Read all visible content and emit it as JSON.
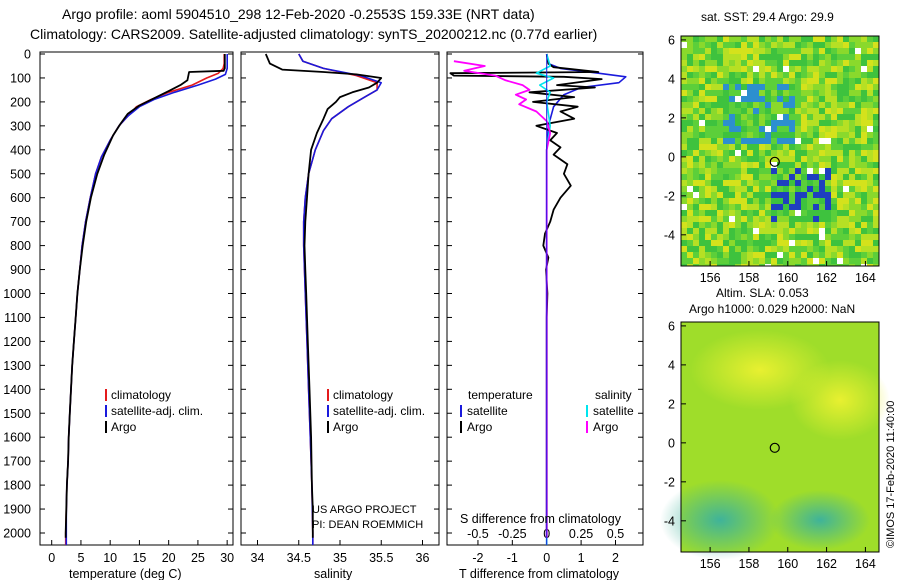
{
  "header": {
    "line1": "Argo profile: aoml 5904510_298 12-Feb-2020 -0.2553S 159.33E (NRT data)",
    "line2": "Climatology: CARS2009. Satellite-adjusted climatology: synTS_20200212.nc (0.77d earlier)"
  },
  "depth_ticks": [
    "0",
    "100",
    "200",
    "300",
    "400",
    "500",
    "600",
    "700",
    "800",
    "900",
    "1000",
    "1100",
    "1200",
    "1300",
    "1400",
    "1500",
    "1600",
    "1700",
    "1800",
    "1900",
    "2000"
  ],
  "colors": {
    "climatology": "#e41a1c",
    "satellite": "#1a1adc",
    "argo": "#000000",
    "sal_sat": "#00e5ee",
    "sal_argo": "#ff00ff"
  },
  "chart_data": [
    {
      "type": "line",
      "id": "temperature",
      "xlabel": "temperature (deg C)",
      "xlim": [
        -2,
        31
      ],
      "xticks": [
        0,
        5,
        10,
        15,
        20,
        25,
        30
      ],
      "ylim": [
        2070,
        0
      ],
      "legend": [
        "climatology",
        "satellite-adj. clim.",
        "Argo"
      ],
      "series": [
        {
          "name": "climatology",
          "color": "#e41a1c",
          "points": [
            [
              29.5,
              0
            ],
            [
              29.5,
              40
            ],
            [
              29.3,
              60
            ],
            [
              28.5,
              80
            ],
            [
              26.5,
              100
            ],
            [
              24,
              130
            ],
            [
              20,
              160
            ],
            [
              17,
              190
            ],
            [
              14.5,
              220
            ],
            [
              13,
              260
            ],
            [
              11.5,
              300
            ],
            [
              10,
              360
            ],
            [
              8.5,
              430
            ],
            [
              7.5,
              500
            ],
            [
              6.6,
              600
            ],
            [
              5.8,
              700
            ],
            [
              5.2,
              800
            ],
            [
              4.8,
              900
            ],
            [
              4.4,
              1000
            ],
            [
              4.1,
              1100
            ],
            [
              3.8,
              1200
            ],
            [
              3.5,
              1300
            ],
            [
              3.3,
              1400
            ],
            [
              3.1,
              1500
            ],
            [
              2.9,
              1600
            ],
            [
              2.8,
              1700
            ],
            [
              2.6,
              1800
            ],
            [
              2.5,
              1900
            ],
            [
              2.4,
              2000
            ],
            [
              2.4,
              2050
            ]
          ]
        },
        {
          "name": "satellite-adj. clim.",
          "color": "#1a1adc",
          "points": [
            [
              30,
              0
            ],
            [
              30,
              30
            ],
            [
              30,
              60
            ],
            [
              29.7,
              85
            ],
            [
              28,
              105
            ],
            [
              25,
              130
            ],
            [
              21,
              160
            ],
            [
              17.5,
              190
            ],
            [
              15,
              220
            ],
            [
              13,
              260
            ],
            [
              11.5,
              300
            ],
            [
              10,
              360
            ],
            [
              8.5,
              430
            ],
            [
              7.5,
              500
            ],
            [
              6.6,
              600
            ],
            [
              5.8,
              700
            ],
            [
              5.2,
              800
            ],
            [
              4.8,
              900
            ],
            [
              4.4,
              1000
            ],
            [
              4.1,
              1100
            ],
            [
              3.8,
              1200
            ],
            [
              3.5,
              1300
            ],
            [
              3.3,
              1400
            ],
            [
              3.1,
              1500
            ],
            [
              2.9,
              1600
            ],
            [
              2.8,
              1700
            ],
            [
              2.6,
              1800
            ],
            [
              2.5,
              1900
            ],
            [
              2.5,
              2000
            ],
            [
              2.5,
              2050
            ]
          ]
        },
        {
          "name": "Argo",
          "color": "#000000",
          "points": [
            [
              29.6,
              0
            ],
            [
              29.6,
              60
            ],
            [
              29.4,
              70
            ],
            [
              23.5,
              75
            ],
            [
              23.2,
              110
            ],
            [
              22,
              130
            ],
            [
              20,
              155
            ],
            [
              17.5,
              185
            ],
            [
              15,
              215
            ],
            [
              13,
              250
            ],
            [
              11.8,
              290
            ],
            [
              10.5,
              340
            ],
            [
              9,
              420
            ],
            [
              7.8,
              500
            ],
            [
              6.7,
              600
            ],
            [
              5.9,
              700
            ],
            [
              5.3,
              800
            ],
            [
              4.8,
              900
            ],
            [
              4.4,
              1000
            ],
            [
              4.1,
              1100
            ],
            [
              3.8,
              1200
            ],
            [
              3.5,
              1300
            ],
            [
              3.3,
              1400
            ],
            [
              3.1,
              1500
            ],
            [
              2.9,
              1600
            ],
            [
              2.8,
              1700
            ],
            [
              2.6,
              1800
            ],
            [
              2.5,
              1900
            ],
            [
              2.4,
              2000
            ],
            [
              2.4,
              2020
            ]
          ]
        }
      ]
    },
    {
      "type": "line",
      "id": "salinity",
      "xlabel": "salinity",
      "xlim": [
        33.8,
        36.2
      ],
      "xticks": [
        34,
        34.5,
        35,
        35.5,
        36
      ],
      "ylim": [
        2070,
        0
      ],
      "legend": [
        "climatology",
        "satellite-adj. clim.",
        "Argo"
      ],
      "annotation": [
        "US ARGO PROJECT",
        "PI: DEAN ROEMMICH"
      ],
      "series": [
        {
          "name": "climatology",
          "color": "#e41a1c",
          "points": [
            [
              34.5,
              0
            ],
            [
              34.55,
              30
            ],
            [
              34.8,
              60
            ],
            [
              35.2,
              90
            ],
            [
              35.45,
              120
            ],
            [
              35.45,
              150
            ],
            [
              35.3,
              180
            ],
            [
              35.1,
              220
            ],
            [
              34.9,
              270
            ],
            [
              34.8,
              320
            ],
            [
              34.7,
              400
            ],
            [
              34.62,
              500
            ],
            [
              34.58,
              600
            ],
            [
              34.56,
              700
            ],
            [
              34.56,
              800
            ],
            [
              34.57,
              900
            ],
            [
              34.58,
              1000
            ],
            [
              34.6,
              1200
            ],
            [
              34.62,
              1400
            ],
            [
              34.64,
              1600
            ],
            [
              34.66,
              1800
            ],
            [
              34.67,
              2000
            ],
            [
              34.67,
              2050
            ]
          ]
        },
        {
          "name": "satellite-adj. clim.",
          "color": "#1a1adc",
          "points": [
            [
              34.5,
              0
            ],
            [
              34.55,
              30
            ],
            [
              34.8,
              60
            ],
            [
              35.25,
              90
            ],
            [
              35.5,
              120
            ],
            [
              35.45,
              150
            ],
            [
              35.3,
              180
            ],
            [
              35.1,
              220
            ],
            [
              34.9,
              270
            ],
            [
              34.8,
              320
            ],
            [
              34.7,
              400
            ],
            [
              34.62,
              500
            ],
            [
              34.58,
              600
            ],
            [
              34.56,
              700
            ],
            [
              34.56,
              800
            ],
            [
              34.57,
              900
            ],
            [
              34.58,
              1000
            ],
            [
              34.6,
              1200
            ],
            [
              34.62,
              1400
            ],
            [
              34.64,
              1600
            ],
            [
              34.66,
              1800
            ],
            [
              34.67,
              2000
            ],
            [
              34.67,
              2050
            ]
          ]
        },
        {
          "name": "Argo",
          "color": "#000000",
          "points": [
            [
              34.1,
              0
            ],
            [
              34.15,
              40
            ],
            [
              34.3,
              65
            ],
            [
              34.8,
              75
            ],
            [
              35.2,
              85
            ],
            [
              35.5,
              100
            ],
            [
              35.45,
              120
            ],
            [
              35.35,
              140
            ],
            [
              35.15,
              160
            ],
            [
              35.0,
              180
            ],
            [
              34.95,
              200
            ],
            [
              34.85,
              230
            ],
            [
              34.8,
              270
            ],
            [
              34.72,
              330
            ],
            [
              34.65,
              400
            ],
            [
              34.62,
              500
            ],
            [
              34.6,
              600
            ],
            [
              34.58,
              700
            ],
            [
              34.57,
              800
            ],
            [
              34.58,
              900
            ],
            [
              34.59,
              1000
            ],
            [
              34.61,
              1200
            ],
            [
              34.63,
              1400
            ],
            [
              34.65,
              1600
            ],
            [
              34.66,
              1800
            ],
            [
              34.67,
              1900
            ],
            [
              34.67,
              2020
            ]
          ]
        }
      ]
    },
    {
      "type": "line",
      "id": "differences",
      "xlabel": "T difference from climatology",
      "xlabel_top": "S difference from climatology",
      "xlim": [
        -2.9,
        2.8
      ],
      "xticks": [
        -2,
        -1,
        0,
        1,
        2
      ],
      "xticks_s": [
        "-0.5",
        "-0.25",
        "0",
        "0.25",
        "0.5"
      ],
      "ylim": [
        2070,
        0
      ],
      "legend_left_title": "temperature",
      "legend_right_title": "salinity",
      "legend": [
        "satellite",
        "Argo"
      ],
      "series": [
        {
          "name": "temperature satellite",
          "color": "#1a1adc",
          "points": [
            [
              0,
              0
            ],
            [
              0.05,
              40
            ],
            [
              0.4,
              60
            ],
            [
              1.5,
              80
            ],
            [
              2.3,
              95
            ],
            [
              2.1,
              120
            ],
            [
              1.0,
              140
            ],
            [
              0.5,
              170
            ],
            [
              0.2,
              220
            ],
            [
              0.05,
              300
            ],
            [
              0,
              400
            ],
            [
              0,
              2050
            ]
          ]
        },
        {
          "name": "temperature Argo",
          "color": "#000000",
          "points": [
            [
              0,
              0
            ],
            [
              0.05,
              40
            ],
            [
              0.2,
              55
            ],
            [
              1.5,
              75
            ],
            [
              -2.8,
              80
            ],
            [
              -2.7,
              90
            ],
            [
              0.5,
              95
            ],
            [
              1.6,
              105
            ],
            [
              0.3,
              130
            ],
            [
              1.4,
              140
            ],
            [
              -0.5,
              160
            ],
            [
              0.8,
              180
            ],
            [
              -0.4,
              200
            ],
            [
              0.9,
              220
            ],
            [
              0.4,
              240
            ],
            [
              0.8,
              270
            ],
            [
              -0.3,
              300
            ],
            [
              0.3,
              330
            ],
            [
              0.1,
              360
            ],
            [
              0.4,
              390
            ],
            [
              0.2,
              420
            ],
            [
              0.6,
              460
            ],
            [
              0.5,
              500
            ],
            [
              0.7,
              550
            ],
            [
              0.4,
              600
            ],
            [
              0.2,
              650
            ],
            [
              0.1,
              700
            ],
            [
              -0.05,
              750
            ],
            [
              -0.1,
              800
            ],
            [
              0.05,
              850
            ],
            [
              -0.02,
              900
            ],
            [
              0.02,
              1000
            ],
            [
              0,
              1100
            ],
            [
              0,
              2020
            ]
          ]
        },
        {
          "name": "salinity satellite",
          "color": "#00e5ee",
          "points": [
            [
              0,
              0
            ],
            [
              0.1,
              50
            ],
            [
              -0.3,
              80
            ],
            [
              0.2,
              100
            ],
            [
              -0.2,
              130
            ],
            [
              0.1,
              160
            ],
            [
              0,
              200
            ],
            [
              0.1,
              300
            ],
            [
              0,
              400
            ],
            [
              0,
              2050
            ]
          ]
        },
        {
          "name": "salinity Argo",
          "color": "#ff00ff",
          "points": [
            [
              -2.7,
              30
            ],
            [
              -1.8,
              50
            ],
            [
              -2.4,
              70
            ],
            [
              -1.5,
              90
            ],
            [
              -1.2,
              110
            ],
            [
              -0.7,
              130
            ],
            [
              -0.5,
              150
            ],
            [
              -0.9,
              170
            ],
            [
              -0.6,
              190
            ],
            [
              -0.8,
              210
            ],
            [
              -0.3,
              240
            ],
            [
              0,
              280
            ],
            [
              0.1,
              330
            ],
            [
              0,
              400
            ],
            [
              0,
              1900
            ],
            [
              0,
              2020
            ]
          ]
        }
      ]
    }
  ],
  "maps": {
    "sst": {
      "title": "sat. SST: 29.4 Argo: 29.9",
      "x_ticks": [
        "156",
        "158",
        "160",
        "162",
        "164"
      ],
      "y_ticks": [
        "6",
        "4",
        "2",
        "0",
        "-2",
        "-4"
      ],
      "float_lon": 159.33,
      "float_lat": -0.2553
    },
    "sla": {
      "title1": "Altim. SLA: 0.053",
      "title2": "Argo h1000: 0.029 h2000: NaN",
      "x_ticks": [
        "156",
        "158",
        "160",
        "162",
        "164"
      ],
      "y_ticks": [
        "6",
        "4",
        "2",
        "0",
        "-2",
        "-4"
      ],
      "float_lon": 159.33,
      "float_lat": -0.2553
    }
  },
  "credit": "©IMOS 17-Feb-2020 11:40:00"
}
